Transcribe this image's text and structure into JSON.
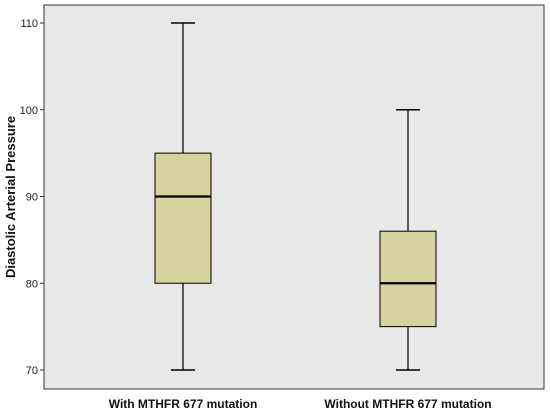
{
  "chart_data": {
    "type": "boxplot",
    "title": "",
    "xlabel": "",
    "ylabel": "Diastolic Arterial Pressure",
    "ylim": [
      68,
      112
    ],
    "yticks": [
      70,
      80,
      90,
      100,
      110
    ],
    "grid": false,
    "legend": "none",
    "categories": [
      "With MTHFR 677 mutation",
      "Without MTHFR 677 mutation"
    ],
    "series": [
      {
        "values": [
          {
            "min": 70,
            "q1": 80,
            "median": 90,
            "q3": 95,
            "max": 110
          },
          {
            "min": 70,
            "q1": 75,
            "median": 80,
            "q3": 86,
            "max": 100
          }
        ]
      }
    ],
    "colors": {
      "plot_background": "#e8e8e8",
      "box_fill": "#d6d39e",
      "stroke": "#000000"
    }
  }
}
